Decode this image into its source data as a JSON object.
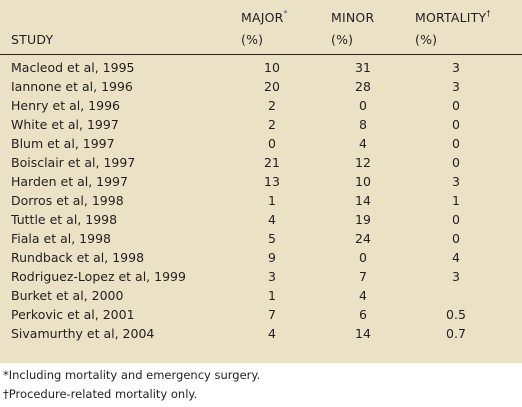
{
  "table": {
    "headers": {
      "study": "STUDY",
      "major": "MAJOR",
      "major_mark": "*",
      "major_unit": "(%)",
      "minor": "MINOR",
      "minor_unit": "(%)",
      "mortality": "MORTALITY",
      "mortality_mark": "†",
      "mortality_unit": "(%)"
    },
    "rows": [
      {
        "study": "Macleod et al, 1995",
        "major": "10",
        "minor": "31",
        "mortality": "3"
      },
      {
        "study": "Iannone et al, 1996",
        "major": "20",
        "minor": "28",
        "mortality": "3"
      },
      {
        "study": "Henry et al, 1996",
        "major": "2",
        "minor": "0",
        "mortality": "0"
      },
      {
        "study": "White et al, 1997",
        "major": "2",
        "minor": "8",
        "mortality": "0"
      },
      {
        "study": "Blum et al, 1997",
        "major": "0",
        "minor": "4",
        "mortality": "0"
      },
      {
        "study": "Boisclair et al, 1997",
        "major": "21",
        "minor": "12",
        "mortality": "0"
      },
      {
        "study": "Harden et al, 1997",
        "major": "13",
        "minor": "10",
        "mortality": "3"
      },
      {
        "study": "Dorros et al, 1998",
        "major": "1",
        "minor": "14",
        "mortality": "1"
      },
      {
        "study": "Tuttle et al, 1998",
        "major": "4",
        "minor": "19",
        "mortality": "0"
      },
      {
        "study": "Fiala et al, 1998",
        "major": "5",
        "minor": "24",
        "mortality": "0"
      },
      {
        "study": "Rundback et al, 1998",
        "major": "9",
        "minor": "0",
        "mortality": "4"
      },
      {
        "study": "Rodriguez-Lopez et al, 1999",
        "major": "3",
        "minor": "7",
        "mortality": "3"
      },
      {
        "study": "Burket et al, 2000",
        "major": "1",
        "minor": "4",
        "mortality": ""
      },
      {
        "study": "Perkovic et al, 2001",
        "major": "7",
        "minor": "6",
        "mortality": "0.5"
      },
      {
        "study": "Sivamurthy et al, 2004",
        "major": "4",
        "minor": "14",
        "mortality": "0.7"
      }
    ]
  },
  "footnotes": [
    "*Including mortality and emergency surgery.",
    "†Procedure-related mortality only."
  ],
  "colors": {
    "table_background": "#ebe2c5",
    "text": "#231f20",
    "footnote_mark_major": "#3a4fa0"
  }
}
